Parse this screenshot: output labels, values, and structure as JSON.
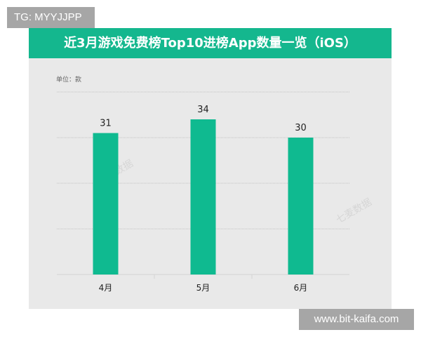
{
  "overlays": {
    "top_left_tag": "TG: MYYJJPP",
    "bottom_right_tag": "www.bit-kaifa.com"
  },
  "watermark": "七麦数据",
  "chart_data": {
    "type": "bar",
    "title": "近3月游戏免费榜Top10进榜App数量一览（iOS）",
    "unit_label": "单位：款",
    "categories": [
      "4月",
      "5月",
      "6月"
    ],
    "values": [
      31,
      34,
      30
    ],
    "data_labels": [
      "31",
      "34",
      "30"
    ],
    "ylim": [
      0,
      40
    ],
    "grid": true,
    "colors": {
      "bar": "#0fba90",
      "title_bar": "#14b78e",
      "background": "#e9e9e9"
    }
  }
}
